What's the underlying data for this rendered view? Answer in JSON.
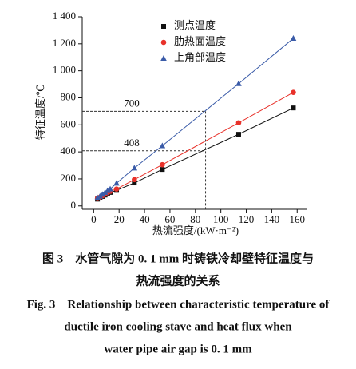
{
  "chart_data": {
    "type": "scatter-line",
    "x_label": "热流强度/(kW·m⁻²)",
    "y_label": "特征温度/℃",
    "x": [
      3,
      5,
      7,
      9,
      11,
      13,
      18,
      32,
      54,
      114,
      157
    ],
    "series": [
      {
        "name": "测点温度",
        "color": "#111111",
        "marker": "square",
        "values": [
          50,
          60,
          70,
          80,
          90,
          100,
          115,
          170,
          270,
          530,
          725
        ]
      },
      {
        "name": "肋热面温度",
        "color": "#e8312a",
        "marker": "circle",
        "values": [
          55,
          65,
          75,
          88,
          98,
          108,
          125,
          195,
          305,
          615,
          840
        ]
      },
      {
        "name": "上角部温度",
        "color": "#3a5ba8",
        "marker": "triangle",
        "values": [
          60,
          72,
          85,
          100,
          113,
          125,
          168,
          280,
          445,
          905,
          1240
        ]
      }
    ],
    "xlim": [
      -9,
      168
    ],
    "xticks": [
      0,
      20,
      40,
      60,
      80,
      100,
      120,
      140,
      160
    ],
    "ylim": [
      -25,
      1400
    ],
    "yticks": [
      0,
      200,
      400,
      600,
      800,
      {
        "value": 1000,
        "label": "1 000"
      },
      {
        "value": 1200,
        "label": "1 200"
      },
      {
        "value": 1400,
        "label": "1 400"
      }
    ],
    "hlines": [
      700,
      408
    ],
    "vline": 88,
    "legend": "top-center"
  },
  "caption": {
    "zh": [
      "图 3　水管气隙为 0. 1 mm 时铸铁冷却壁特征温度与",
      "热流强度的关系"
    ],
    "en": [
      "Fig. 3　Relationship between characteristic temperature of",
      "ductile iron cooling stave and heat flux when",
      "water pipe air gap is 0. 1 mm"
    ]
  }
}
